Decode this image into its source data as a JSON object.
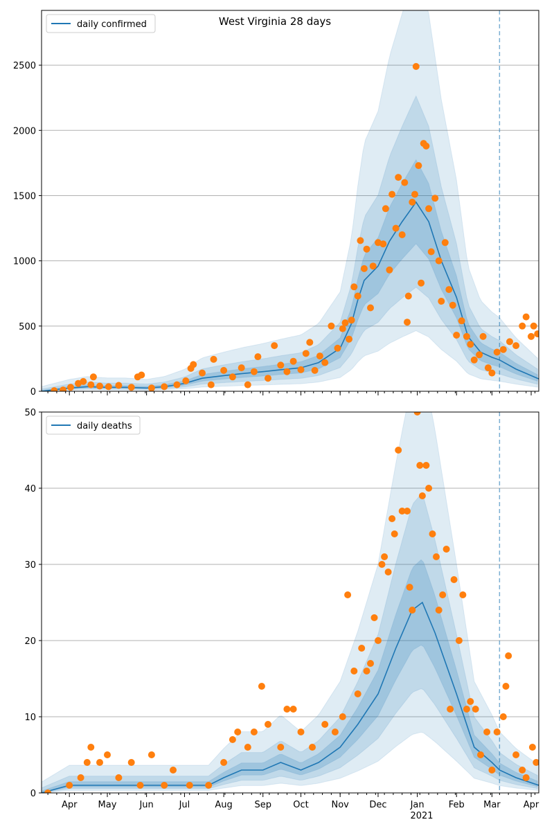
{
  "chart_data": [
    {
      "type": "line",
      "title": "West Virginia 28 days",
      "legend": {
        "label": "daily confirmed",
        "position": "top-left"
      },
      "ylim": [
        0,
        2920
      ],
      "yticks": [
        0,
        500,
        1000,
        1500,
        2000,
        2500
      ],
      "grid": "horizontal",
      "forecast_start": "2021-03-07",
      "series": [
        {
          "name": "daily confirmed",
          "kind": "model-median",
          "color": "#1f77b4",
          "points": [
            [
              "2020-03-10",
              0
            ],
            [
              "2020-04-01",
              25
            ],
            [
              "2020-04-15",
              35
            ],
            [
              "2020-05-01",
              30
            ],
            [
              "2020-05-15",
              30
            ],
            [
              "2020-06-01",
              25
            ],
            [
              "2020-06-15",
              35
            ],
            [
              "2020-07-01",
              60
            ],
            [
              "2020-07-15",
              100
            ],
            [
              "2020-08-01",
              120
            ],
            [
              "2020-08-15",
              135
            ],
            [
              "2020-09-01",
              150
            ],
            [
              "2020-09-15",
              165
            ],
            [
              "2020-10-01",
              180
            ],
            [
              "2020-10-15",
              220
            ],
            [
              "2020-11-01",
              330
            ],
            [
              "2020-11-10",
              520
            ],
            [
              "2020-11-15",
              700
            ],
            [
              "2020-11-20",
              850
            ],
            [
              "2020-12-01",
              960
            ],
            [
              "2020-12-10",
              1150
            ],
            [
              "2020-12-20",
              1300
            ],
            [
              "2020-12-31",
              1450
            ],
            [
              "2021-01-10",
              1300
            ],
            [
              "2021-01-20",
              1000
            ],
            [
              "2021-02-01",
              720
            ],
            [
              "2021-02-10",
              420
            ],
            [
              "2021-02-20",
              300
            ],
            [
              "2021-03-01",
              260
            ],
            [
              "2021-03-07",
              240
            ],
            [
              "2021-03-20",
              170
            ],
            [
              "2021-04-07",
              95
            ]
          ]
        },
        {
          "name": "",
          "kind": "observed",
          "color": "#ff7f0e",
          "points": [
            [
              "2020-03-20",
              5
            ],
            [
              "2020-03-27",
              10
            ],
            [
              "2020-04-02",
              30
            ],
            [
              "2020-04-08",
              60
            ],
            [
              "2020-04-12",
              75
            ],
            [
              "2020-04-18",
              50
            ],
            [
              "2020-04-20",
              110
            ],
            [
              "2020-04-25",
              40
            ],
            [
              "2020-05-02",
              35
            ],
            [
              "2020-05-10",
              45
            ],
            [
              "2020-05-20",
              30
            ],
            [
              "2020-05-25",
              110
            ],
            [
              "2020-05-28",
              125
            ],
            [
              "2020-06-05",
              25
            ],
            [
              "2020-06-15",
              35
            ],
            [
              "2020-06-25",
              50
            ],
            [
              "2020-07-02",
              80
            ],
            [
              "2020-07-06",
              175
            ],
            [
              "2020-07-08",
              205
            ],
            [
              "2020-07-15",
              140
            ],
            [
              "2020-07-22",
              50
            ],
            [
              "2020-07-24",
              245
            ],
            [
              "2020-08-01",
              160
            ],
            [
              "2020-08-08",
              110
            ],
            [
              "2020-08-15",
              180
            ],
            [
              "2020-08-20",
              50
            ],
            [
              "2020-08-25",
              150
            ],
            [
              "2020-08-28",
              265
            ],
            [
              "2020-09-05",
              100
            ],
            [
              "2020-09-10",
              350
            ],
            [
              "2020-09-15",
              200
            ],
            [
              "2020-09-20",
              150
            ],
            [
              "2020-09-25",
              230
            ],
            [
              "2020-10-01",
              165
            ],
            [
              "2020-10-05",
              290
            ],
            [
              "2020-10-08",
              375
            ],
            [
              "2020-10-12",
              160
            ],
            [
              "2020-10-16",
              270
            ],
            [
              "2020-10-20",
              220
            ],
            [
              "2020-10-25",
              500
            ],
            [
              "2020-10-30",
              330
            ],
            [
              "2020-11-03",
              480
            ],
            [
              "2020-11-05",
              525
            ],
            [
              "2020-11-08",
              400
            ],
            [
              "2020-11-10",
              545
            ],
            [
              "2020-11-12",
              800
            ],
            [
              "2020-11-15",
              730
            ],
            [
              "2020-11-17",
              1155
            ],
            [
              "2020-11-20",
              940
            ],
            [
              "2020-11-22",
              1090
            ],
            [
              "2020-11-25",
              640
            ],
            [
              "2020-11-27",
              960
            ],
            [
              "2020-12-01",
              1140
            ],
            [
              "2020-12-05",
              1130
            ],
            [
              "2020-12-07",
              1400
            ],
            [
              "2020-12-10",
              930
            ],
            [
              "2020-12-12",
              1510
            ],
            [
              "2020-12-15",
              1250
            ],
            [
              "2020-12-17",
              1640
            ],
            [
              "2020-12-20",
              1200
            ],
            [
              "2020-12-22",
              1600
            ],
            [
              "2020-12-24",
              530
            ],
            [
              "2020-12-25",
              730
            ],
            [
              "2020-12-28",
              1450
            ],
            [
              "2020-12-30",
              1510
            ],
            [
              "2020-12-31",
              2490
            ],
            [
              "2021-01-02",
              1730
            ],
            [
              "2021-01-04",
              830
            ],
            [
              "2021-01-06",
              1900
            ],
            [
              "2021-01-08",
              1880
            ],
            [
              "2021-01-10",
              1400
            ],
            [
              "2021-01-12",
              1070
            ],
            [
              "2021-01-15",
              1480
            ],
            [
              "2021-01-18",
              1000
            ],
            [
              "2021-01-20",
              690
            ],
            [
              "2021-01-23",
              1140
            ],
            [
              "2021-01-26",
              780
            ],
            [
              "2021-01-29",
              660
            ],
            [
              "2021-02-01",
              430
            ],
            [
              "2021-02-05",
              540
            ],
            [
              "2021-02-09",
              420
            ],
            [
              "2021-02-12",
              360
            ],
            [
              "2021-02-15",
              240
            ],
            [
              "2021-02-19",
              280
            ],
            [
              "2021-02-22",
              420
            ],
            [
              "2021-02-26",
              180
            ],
            [
              "2021-03-01",
              140
            ],
            [
              "2021-03-05",
              300
            ],
            [
              "2021-03-10",
              320
            ],
            [
              "2021-03-15",
              380
            ],
            [
              "2021-03-20",
              350
            ],
            [
              "2021-03-25",
              500
            ],
            [
              "2021-03-28",
              570
            ],
            [
              "2021-04-01",
              420
            ],
            [
              "2021-04-03",
              500
            ],
            [
              "2021-04-06",
              440
            ]
          ]
        }
      ]
    },
    {
      "type": "line",
      "title": "",
      "legend": {
        "label": "daily deaths",
        "position": "top-left"
      },
      "ylim": [
        0,
        50
      ],
      "yticks": [
        0,
        10,
        20,
        30,
        40,
        50
      ],
      "grid": "horizontal",
      "forecast_start": "2021-03-07",
      "x_tick_labels": [
        "Apr",
        "May",
        "Jun",
        "Jul",
        "Aug",
        "Sep",
        "Oct",
        "Nov",
        "Dec",
        "Jan",
        "Feb",
        "Mar",
        "Apr"
      ],
      "x_tick_dates": [
        "2020-04-01",
        "2020-05-01",
        "2020-06-01",
        "2020-07-01",
        "2020-08-01",
        "2020-09-01",
        "2020-10-01",
        "2020-11-01",
        "2020-12-01",
        "2021-01-01",
        "2021-02-01",
        "2021-03-01",
        "2021-04-01"
      ],
      "x_secondary_label": "2021",
      "series": [
        {
          "name": "daily deaths",
          "kind": "model-median",
          "color": "#1f77b4",
          "points": [
            [
              "2020-03-10",
              0
            ],
            [
              "2020-04-01",
              1
            ],
            [
              "2020-05-01",
              1
            ],
            [
              "2020-06-01",
              1
            ],
            [
              "2020-07-01",
              1
            ],
            [
              "2020-07-20",
              1
            ],
            [
              "2020-08-01",
              2
            ],
            [
              "2020-08-15",
              3
            ],
            [
              "2020-09-01",
              3
            ],
            [
              "2020-09-15",
              4
            ],
            [
              "2020-10-01",
              3
            ],
            [
              "2020-10-15",
              4
            ],
            [
              "2020-11-01",
              6
            ],
            [
              "2020-11-15",
              9
            ],
            [
              "2020-12-01",
              13
            ],
            [
              "2020-12-15",
              19
            ],
            [
              "2020-12-28",
              24
            ],
            [
              "2021-01-05",
              25
            ],
            [
              "2021-01-15",
              21
            ],
            [
              "2021-02-01",
              13
            ],
            [
              "2021-02-15",
              6
            ],
            [
              "2021-03-01",
              4
            ],
            [
              "2021-03-07",
              3
            ],
            [
              "2021-03-20",
              2
            ],
            [
              "2021-04-07",
              1
            ]
          ]
        },
        {
          "name": "",
          "kind": "observed",
          "color": "#ff7f0e",
          "points": [
            [
              "2020-03-15",
              0
            ],
            [
              "2020-04-01",
              1
            ],
            [
              "2020-04-10",
              2
            ],
            [
              "2020-04-15",
              4
            ],
            [
              "2020-04-18",
              6
            ],
            [
              "2020-04-25",
              4
            ],
            [
              "2020-05-01",
              5
            ],
            [
              "2020-05-10",
              2
            ],
            [
              "2020-05-20",
              4
            ],
            [
              "2020-05-27",
              1
            ],
            [
              "2020-06-05",
              5
            ],
            [
              "2020-06-15",
              1
            ],
            [
              "2020-06-22",
              3
            ],
            [
              "2020-07-05",
              1
            ],
            [
              "2020-07-20",
              1
            ],
            [
              "2020-08-01",
              4
            ],
            [
              "2020-08-08",
              7
            ],
            [
              "2020-08-12",
              8
            ],
            [
              "2020-08-20",
              6
            ],
            [
              "2020-08-25",
              8
            ],
            [
              "2020-08-31",
              14
            ],
            [
              "2020-09-05",
              9
            ],
            [
              "2020-09-15",
              6
            ],
            [
              "2020-09-20",
              11
            ],
            [
              "2020-09-25",
              11
            ],
            [
              "2020-10-01",
              8
            ],
            [
              "2020-10-10",
              6
            ],
            [
              "2020-10-20",
              9
            ],
            [
              "2020-10-28",
              8
            ],
            [
              "2020-11-03",
              10
            ],
            [
              "2020-11-07",
              26
            ],
            [
              "2020-11-12",
              16
            ],
            [
              "2020-11-15",
              13
            ],
            [
              "2020-11-18",
              19
            ],
            [
              "2020-11-22",
              16
            ],
            [
              "2020-11-25",
              17
            ],
            [
              "2020-11-28",
              23
            ],
            [
              "2020-12-01",
              20
            ],
            [
              "2020-12-04",
              30
            ],
            [
              "2020-12-06",
              31
            ],
            [
              "2020-12-09",
              29
            ],
            [
              "2020-12-12",
              36
            ],
            [
              "2020-12-14",
              34
            ],
            [
              "2020-12-17",
              45
            ],
            [
              "2020-12-20",
              37
            ],
            [
              "2020-12-24",
              37
            ],
            [
              "2020-12-26",
              27
            ],
            [
              "2020-12-28",
              24
            ],
            [
              "2021-01-01",
              50
            ],
            [
              "2021-01-03",
              43
            ],
            [
              "2021-01-05",
              39
            ],
            [
              "2021-01-08",
              43
            ],
            [
              "2021-01-10",
              40
            ],
            [
              "2021-01-13",
              34
            ],
            [
              "2021-01-16",
              31
            ],
            [
              "2021-01-18",
              24
            ],
            [
              "2021-01-21",
              26
            ],
            [
              "2021-01-24",
              32
            ],
            [
              "2021-01-27",
              11
            ],
            [
              "2021-01-30",
              28
            ],
            [
              "2021-02-03",
              20
            ],
            [
              "2021-02-06",
              26
            ],
            [
              "2021-02-09",
              11
            ],
            [
              "2021-02-12",
              12
            ],
            [
              "2021-02-16",
              11
            ],
            [
              "2021-02-20",
              5
            ],
            [
              "2021-02-25",
              8
            ],
            [
              "2021-03-01",
              3
            ],
            [
              "2021-03-05",
              8
            ],
            [
              "2021-03-10",
              10
            ],
            [
              "2021-03-12",
              14
            ],
            [
              "2021-03-14",
              18
            ],
            [
              "2021-03-20",
              5
            ],
            [
              "2021-03-25",
              3
            ],
            [
              "2021-03-28",
              2
            ],
            [
              "2021-04-02",
              6
            ],
            [
              "2021-04-05",
              4
            ]
          ]
        }
      ]
    }
  ]
}
